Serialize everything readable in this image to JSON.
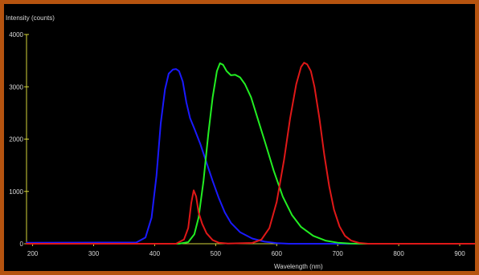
{
  "colors": {
    "frame": "#b5530f",
    "background": "#000000",
    "axis": "#d4d43a",
    "text": "#d8d8d8"
  },
  "chart_data": {
    "type": "line",
    "ylabel": "Intensity (counts)",
    "xlabel": "Wavelength (nm)",
    "xlim": [
      190,
      925
    ],
    "ylim": [
      0,
      4000
    ],
    "xticks": [
      200,
      300,
      400,
      500,
      600,
      700,
      800,
      900
    ],
    "yticks": [
      0,
      1000,
      2000,
      3000,
      4000
    ],
    "grid": false,
    "series": [
      {
        "color": "#1a1aff",
        "points": [
          [
            190,
            20
          ],
          [
            370,
            25
          ],
          [
            385,
            120
          ],
          [
            395,
            500
          ],
          [
            403,
            1300
          ],
          [
            410,
            2300
          ],
          [
            417,
            2950
          ],
          [
            423,
            3250
          ],
          [
            430,
            3330
          ],
          [
            435,
            3340
          ],
          [
            440,
            3300
          ],
          [
            446,
            3100
          ],
          [
            452,
            2700
          ],
          [
            458,
            2400
          ],
          [
            465,
            2200
          ],
          [
            475,
            1900
          ],
          [
            485,
            1550
          ],
          [
            495,
            1200
          ],
          [
            505,
            880
          ],
          [
            515,
            600
          ],
          [
            525,
            400
          ],
          [
            540,
            220
          ],
          [
            560,
            100
          ],
          [
            580,
            40
          ],
          [
            600,
            12
          ],
          [
            620,
            0
          ],
          [
            925,
            0
          ]
        ]
      },
      {
        "color": "#22ee22",
        "points": [
          [
            190,
            0
          ],
          [
            440,
            0
          ],
          [
            455,
            30
          ],
          [
            465,
            180
          ],
          [
            472,
            500
          ],
          [
            480,
            1200
          ],
          [
            488,
            2100
          ],
          [
            495,
            2800
          ],
          [
            502,
            3300
          ],
          [
            507,
            3450
          ],
          [
            512,
            3420
          ],
          [
            518,
            3300
          ],
          [
            525,
            3220
          ],
          [
            532,
            3230
          ],
          [
            540,
            3180
          ],
          [
            548,
            3050
          ],
          [
            558,
            2800
          ],
          [
            570,
            2350
          ],
          [
            582,
            1900
          ],
          [
            595,
            1400
          ],
          [
            610,
            900
          ],
          [
            625,
            550
          ],
          [
            640,
            320
          ],
          [
            660,
            150
          ],
          [
            680,
            60
          ],
          [
            700,
            20
          ],
          [
            720,
            5
          ],
          [
            740,
            0
          ],
          [
            925,
            0
          ]
        ]
      },
      {
        "color": "#e01818",
        "points": [
          [
            190,
            0
          ],
          [
            435,
            0
          ],
          [
            448,
            80
          ],
          [
            455,
            300
          ],
          [
            460,
            780
          ],
          [
            464,
            1020
          ],
          [
            468,
            900
          ],
          [
            472,
            600
          ],
          [
            478,
            380
          ],
          [
            485,
            200
          ],
          [
            495,
            70
          ],
          [
            505,
            20
          ],
          [
            520,
            5
          ],
          [
            560,
            15
          ],
          [
            575,
            80
          ],
          [
            588,
            300
          ],
          [
            600,
            800
          ],
          [
            612,
            1600
          ],
          [
            622,
            2400
          ],
          [
            632,
            3050
          ],
          [
            640,
            3380
          ],
          [
            645,
            3460
          ],
          [
            650,
            3430
          ],
          [
            656,
            3300
          ],
          [
            662,
            3000
          ],
          [
            670,
            2400
          ],
          [
            678,
            1700
          ],
          [
            686,
            1100
          ],
          [
            694,
            650
          ],
          [
            703,
            330
          ],
          [
            712,
            150
          ],
          [
            722,
            60
          ],
          [
            735,
            15
          ],
          [
            750,
            0
          ],
          [
            925,
            0
          ]
        ]
      }
    ]
  }
}
